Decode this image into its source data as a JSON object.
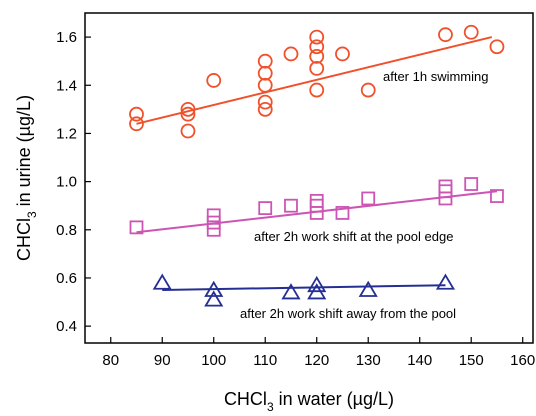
{
  "chart_data": {
    "type": "scatter",
    "xlabel": {
      "text": "CHCl",
      "sub": "3",
      "rest": " in water (µg/L)"
    },
    "ylabel": {
      "text": "CHCl",
      "sub": "3",
      "rest": " in urine (µg/L)"
    },
    "xlim": [
      75,
      162
    ],
    "ylim": [
      0.33,
      1.7
    ],
    "x_ticks": [
      80,
      90,
      100,
      110,
      120,
      130,
      140,
      150,
      160
    ],
    "y_ticks": [
      0.4,
      0.6,
      0.8,
      1.0,
      1.2,
      1.4,
      1.6
    ],
    "x_tick_labels": [
      "80",
      "90",
      "100",
      "110",
      "120",
      "130",
      "140",
      "150",
      "160"
    ],
    "y_tick_labels": [
      "0.4",
      "0.6",
      "0.8",
      "1.0",
      "1.2",
      "1.4",
      "1.6"
    ],
    "series": [
      {
        "name": "after 1h swimming",
        "marker": "circle",
        "color": "#f0502a",
        "points": [
          [
            85,
            1.28
          ],
          [
            85,
            1.24
          ],
          [
            95,
            1.3
          ],
          [
            95,
            1.28
          ],
          [
            95,
            1.21
          ],
          [
            100,
            1.42
          ],
          [
            110,
            1.5
          ],
          [
            110,
            1.45
          ],
          [
            110,
            1.4
          ],
          [
            110,
            1.33
          ],
          [
            110,
            1.3
          ],
          [
            115,
            1.53
          ],
          [
            120,
            1.6
          ],
          [
            120,
            1.56
          ],
          [
            120,
            1.52
          ],
          [
            120,
            1.47
          ],
          [
            120,
            1.38
          ],
          [
            125,
            1.53
          ],
          [
            130,
            1.38
          ],
          [
            145,
            1.61
          ],
          [
            150,
            1.62
          ],
          [
            155,
            1.56
          ]
        ],
        "fit": [
          [
            85,
            1.24
          ],
          [
            154,
            1.6
          ]
        ]
      },
      {
        "name": "after 2h work shift at the pool edge",
        "marker": "square",
        "color": "#cc55b4",
        "points": [
          [
            85,
            0.81
          ],
          [
            100,
            0.86
          ],
          [
            100,
            0.83
          ],
          [
            100,
            0.8
          ],
          [
            110,
            0.89
          ],
          [
            115,
            0.9
          ],
          [
            120,
            0.92
          ],
          [
            120,
            0.9
          ],
          [
            120,
            0.87
          ],
          [
            125,
            0.87
          ],
          [
            130,
            0.93
          ],
          [
            145,
            0.98
          ],
          [
            145,
            0.96
          ],
          [
            145,
            0.93
          ],
          [
            150,
            0.99
          ],
          [
            155,
            0.94
          ]
        ],
        "fit": [
          [
            85,
            0.79
          ],
          [
            155,
            0.96
          ]
        ]
      },
      {
        "name": "after 2h work shift away from the pool",
        "marker": "triangle",
        "color": "#252f93",
        "points": [
          [
            90,
            0.58
          ],
          [
            100,
            0.55
          ],
          [
            100,
            0.51
          ],
          [
            115,
            0.54
          ],
          [
            120,
            0.57
          ],
          [
            120,
            0.54
          ],
          [
            130,
            0.55
          ],
          [
            145,
            0.58
          ]
        ],
        "fit": [
          [
            90,
            0.55
          ],
          [
            145,
            0.57
          ]
        ]
      }
    ]
  }
}
